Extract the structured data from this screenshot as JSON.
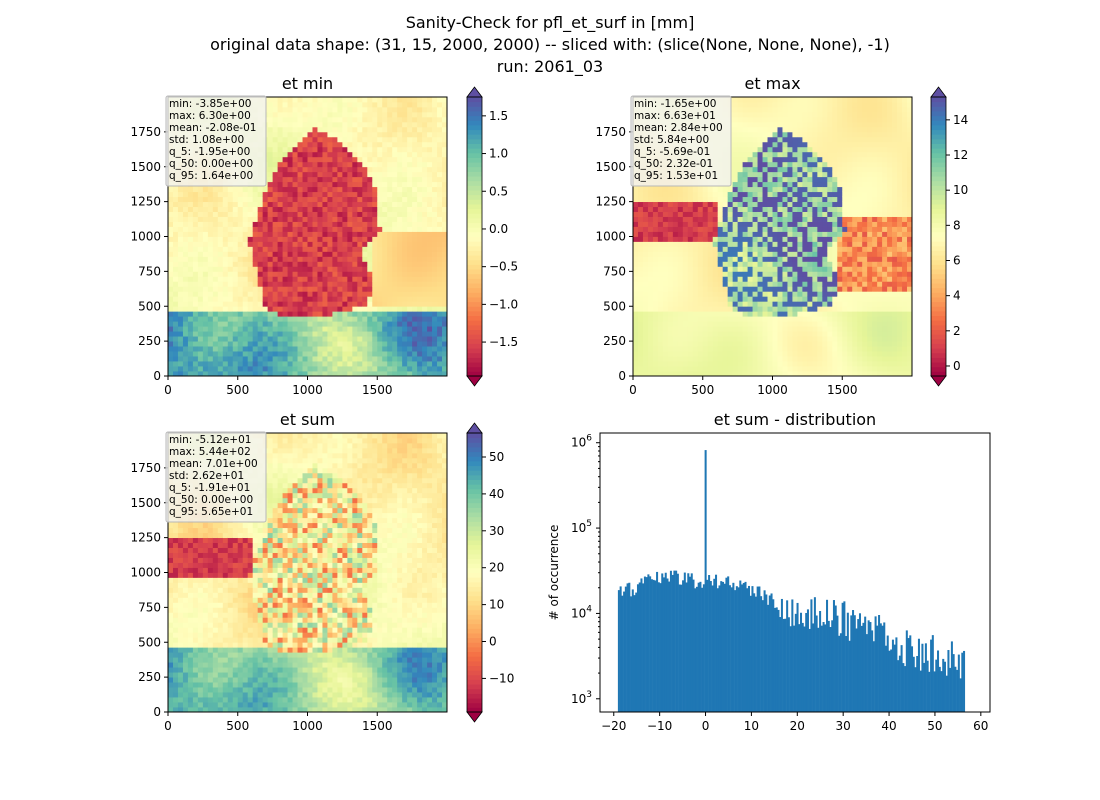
{
  "figure": {
    "title_lines": [
      "Sanity-Check for pfl_et_surf in [mm]",
      "original data shape: (31, 15, 2000, 2000) -- sliced with: (slice(None, None, None), -1)",
      "run: 2061_03"
    ]
  },
  "colors": {
    "bar": "#1f77b4",
    "colormap": "Spectral",
    "stats_box_bg": "#f2f2f2"
  },
  "chart_data": [
    {
      "type": "heatmap",
      "title": "et min",
      "colormap": "Spectral",
      "xlim": [
        0,
        2000
      ],
      "ylim": [
        0,
        2000
      ],
      "xticks": [
        "0",
        "500",
        "1000",
        "1500"
      ],
      "yticks": [
        "0",
        "250",
        "500",
        "750",
        "1000",
        "1250",
        "1500",
        "1750"
      ],
      "colorbar": {
        "min": -1.95,
        "max": 1.75,
        "extend": "both",
        "ticks": [
          "1.5",
          "1.0",
          "0.5",
          "0.0",
          "−0.5",
          "−1.0",
          "−1.5"
        ]
      },
      "stats": [
        "min: -3.85e+00",
        "max: 6.30e+00",
        "mean: -2.08e-01",
        "std: 1.08e+00",
        "q_5: -1.95e+00",
        "q_50: 0.00e+00",
        "q_95: 1.64e+00"
      ]
    },
    {
      "type": "heatmap",
      "title": "et max",
      "colormap": "Spectral",
      "xlim": [
        0,
        2000
      ],
      "ylim": [
        0,
        2000
      ],
      "xticks": [
        "0",
        "500",
        "1000",
        "1500"
      ],
      "yticks": [
        "0",
        "250",
        "500",
        "750",
        "1000",
        "1250",
        "1500",
        "1750"
      ],
      "colorbar": {
        "min": -0.57,
        "max": 15.3,
        "extend": "both",
        "ticks": [
          "14",
          "12",
          "10",
          "8",
          "6",
          "4",
          "2",
          "0"
        ]
      },
      "stats": [
        "min: -1.65e+00",
        "max: 6.63e+01",
        "mean: 2.84e+00",
        "std: 5.84e+00",
        "q_5: -5.69e-01",
        "q_50: 2.32e-01",
        "q_95: 1.53e+01"
      ]
    },
    {
      "type": "heatmap",
      "title": "et sum",
      "colormap": "Spectral",
      "xlim": [
        0,
        2000
      ],
      "ylim": [
        0,
        2000
      ],
      "xticks": [
        "0",
        "500",
        "1000",
        "1500"
      ],
      "yticks": [
        "0",
        "250",
        "500",
        "750",
        "1000",
        "1250",
        "1500",
        "1750"
      ],
      "colorbar": {
        "min": -19.1,
        "max": 56.5,
        "extend": "both",
        "ticks": [
          "50",
          "40",
          "30",
          "20",
          "10",
          "0",
          "−10"
        ]
      },
      "stats": [
        "min: -5.12e+01",
        "max: 5.44e+02",
        "mean: 7.01e+00",
        "std: 2.62e+01",
        "q_5: -1.91e+01",
        "q_50: 0.00e+00",
        "q_95: 5.65e+01"
      ]
    },
    {
      "type": "bar",
      "title": "et sum - distribution",
      "ylabel": "# of occurrence",
      "yscale": "log",
      "xlim": [
        -23,
        62
      ],
      "ylim": [
        700,
        1300000
      ],
      "xticks": [
        "−20",
        "−10",
        "0",
        "10",
        "20",
        "30",
        "40",
        "50",
        "60"
      ],
      "yticks": [
        "10^6",
        "10^5",
        "10^4",
        "10^3"
      ],
      "bin_start": -19.1,
      "bin_width": 0.378,
      "spike": {
        "x": 0,
        "value": 820000
      },
      "profile": [
        {
          "x": -19.1,
          "value": 16500
        },
        {
          "x": -16.0,
          "value": 19500
        },
        {
          "x": -12.0,
          "value": 24000
        },
        {
          "x": -8.0,
          "value": 28000
        },
        {
          "x": -4.0,
          "value": 26000
        },
        {
          "x": -1.0,
          "value": 22000
        },
        {
          "x": 2.0,
          "value": 24000
        },
        {
          "x": 6.0,
          "value": 22000
        },
        {
          "x": 10.0,
          "value": 19000
        },
        {
          "x": 15.0,
          "value": 14000
        },
        {
          "x": 20.0,
          "value": 11500
        },
        {
          "x": 25.0,
          "value": 10000
        },
        {
          "x": 30.0,
          "value": 8000
        },
        {
          "x": 35.0,
          "value": 6500
        },
        {
          "x": 40.0,
          "value": 5000
        },
        {
          "x": 45.0,
          "value": 4000
        },
        {
          "x": 50.0,
          "value": 3200
        },
        {
          "x": 53.0,
          "value": 2800
        },
        {
          "x": 56.5,
          "value": 2200
        }
      ]
    }
  ]
}
